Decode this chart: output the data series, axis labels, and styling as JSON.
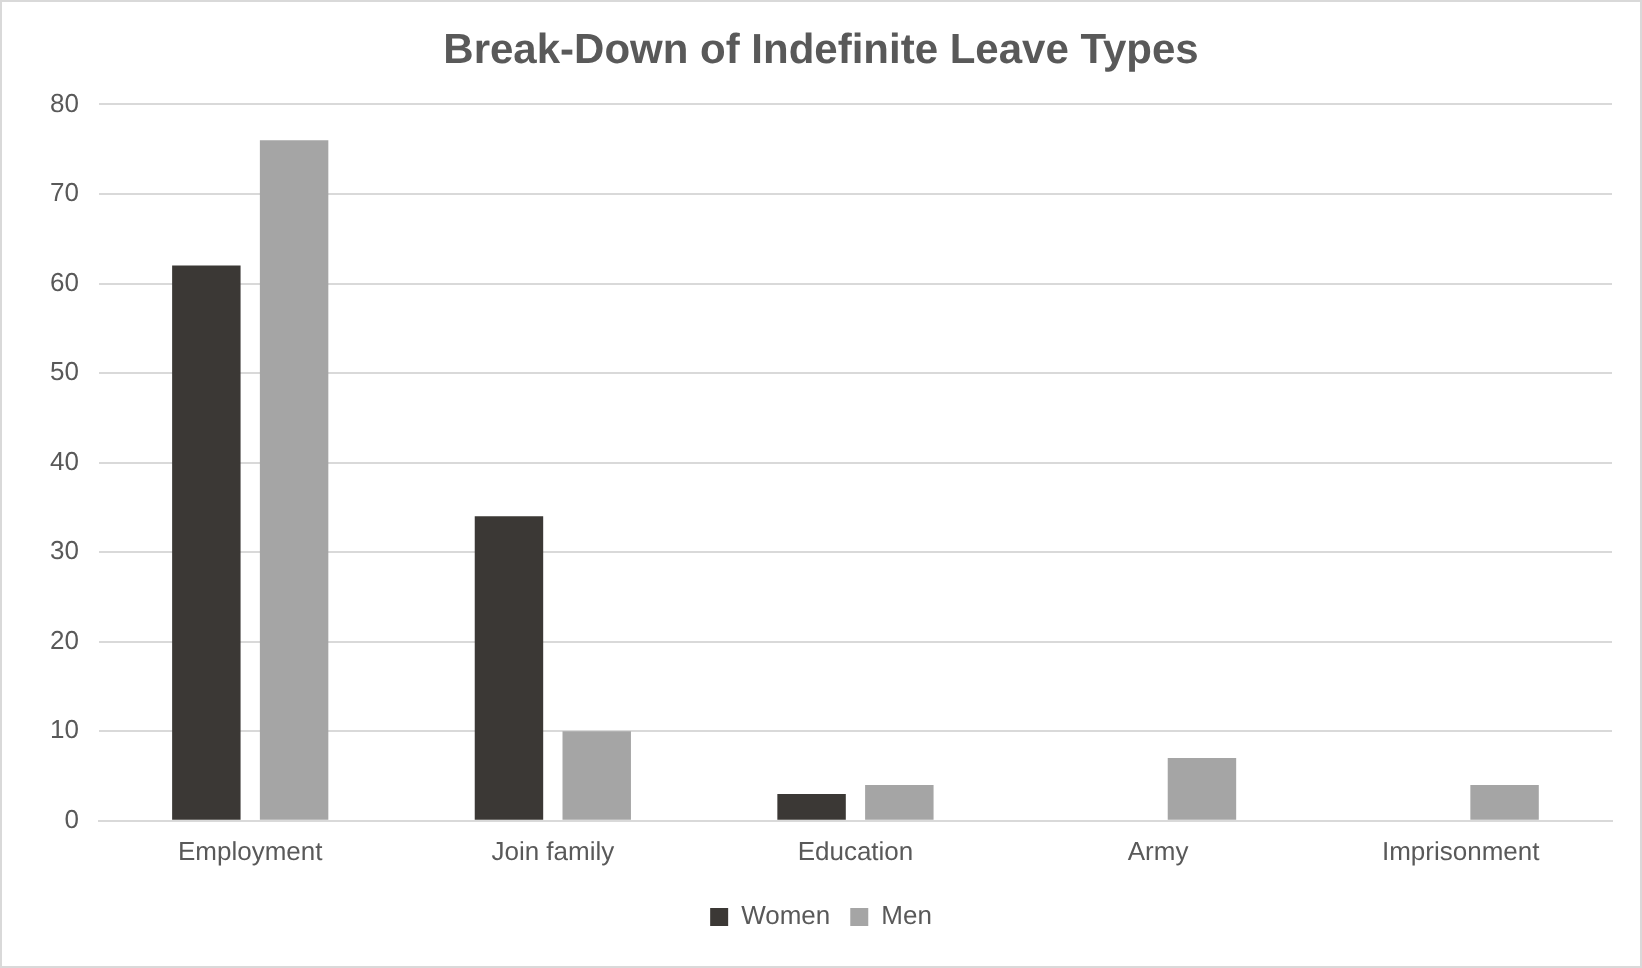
{
  "chart_data": {
    "type": "bar",
    "title": "Break-Down of Indefinite Leave Types",
    "categories": [
      "Employment",
      "Join family",
      "Education",
      "Army",
      "Imprisonment"
    ],
    "series": [
      {
        "name": "Women",
        "color": "#3b3835",
        "values": [
          62,
          34,
          3,
          0,
          0
        ]
      },
      {
        "name": "Men",
        "color": "#a5a5a5",
        "values": [
          76,
          10,
          4,
          7,
          4
        ]
      }
    ],
    "ylim": [
      0,
      80
    ],
    "yticks": [
      0,
      10,
      20,
      30,
      40,
      50,
      60,
      70,
      80
    ],
    "grid": "y",
    "legend": "bottom"
  }
}
